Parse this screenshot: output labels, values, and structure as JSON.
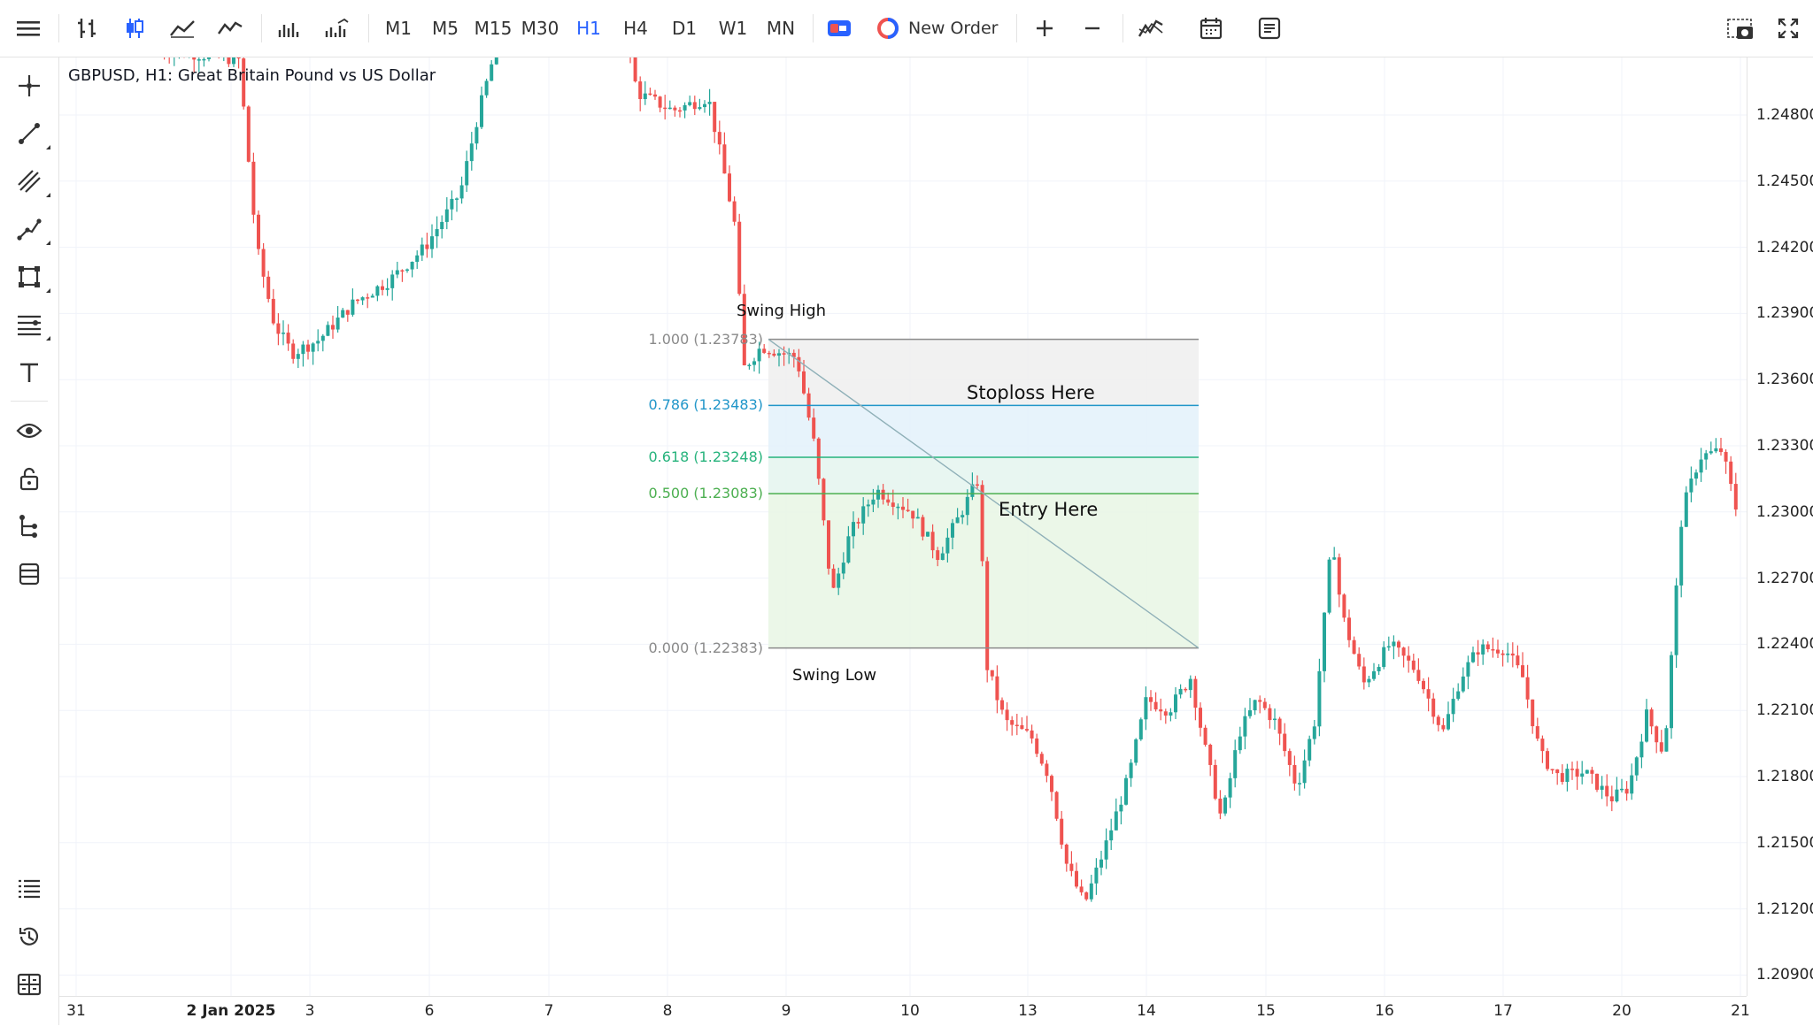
{
  "toolbar": {
    "timeframes": [
      "M1",
      "M5",
      "M15",
      "M30",
      "H1",
      "H4",
      "D1",
      "W1",
      "MN"
    ],
    "active_timeframe": "H1",
    "new_order_label": "New Order",
    "icons": [
      "menu-icon",
      "bar-chart-icon",
      "candlestick-icon",
      "line-chart-icon",
      "area-chart-icon",
      "volume-icon",
      "tick-volume-icon",
      "one-click-trading-icon",
      "new-order-icon",
      "zoom-in-icon",
      "zoom-out-icon",
      "indicators-icon",
      "calendar-icon",
      "notes-icon",
      "screenshot-icon",
      "fullscreen-icon"
    ]
  },
  "sidebar": {
    "icons": [
      "crosshair-icon",
      "trendline-icon",
      "channel-icon",
      "polyline-icon",
      "shapes-icon",
      "fibonacci-icon",
      "text-icon",
      "eye-icon",
      "lock-icon",
      "object-tree-icon",
      "layers-icon",
      "watchlist-icon",
      "history-icon",
      "account-icon"
    ]
  },
  "chart": {
    "symbol_title": "GBPUSD, H1: Great Britain Pound vs US Dollar",
    "price_labels": [
      "1.24800",
      "1.24500",
      "1.24200",
      "1.23900",
      "1.23600",
      "1.23300",
      "1.23000",
      "1.22700",
      "1.22400",
      "1.22100",
      "1.21800",
      "1.21500",
      "1.21200",
      "1.20900"
    ],
    "time_labels": [
      {
        "text": "31",
        "bold": false
      },
      {
        "text": "2 Jan 2025",
        "bold": true
      },
      {
        "text": "3",
        "bold": false
      },
      {
        "text": "6",
        "bold": false
      },
      {
        "text": "7",
        "bold": false
      },
      {
        "text": "8",
        "bold": false
      },
      {
        "text": "9",
        "bold": false
      },
      {
        "text": "10",
        "bold": false
      },
      {
        "text": "13",
        "bold": false
      },
      {
        "text": "14",
        "bold": false
      },
      {
        "text": "15",
        "bold": false
      },
      {
        "text": "16",
        "bold": false
      },
      {
        "text": "17",
        "bold": false
      },
      {
        "text": "20",
        "bold": false
      },
      {
        "text": "21",
        "bold": false
      }
    ],
    "colors": {
      "up": "#26a69a",
      "down": "#ef5350",
      "grid": "#f0f3fa",
      "active": "#2962ff"
    },
    "fibonacci": {
      "levels": [
        {
          "label": "1.000 (1.23783)",
          "price": 1.23783,
          "color": "#8a8a8a"
        },
        {
          "label": "0.786 (1.23483)",
          "price": 1.23483,
          "color": "#2196c9"
        },
        {
          "label": "0.618 (1.23248)",
          "price": 1.23248,
          "color": "#26b37c"
        },
        {
          "label": "0.500 (1.23083)",
          "price": 1.23083,
          "color": "#4caf50"
        },
        {
          "label": "0.000 (1.22383)",
          "price": 1.22383,
          "color": "#8a8a8a"
        }
      ]
    },
    "annotations": {
      "swing_high": "Swing High",
      "swing_low": "Swing Low",
      "stoploss": "Stoploss Here",
      "entry": "Entry Here"
    }
  }
}
